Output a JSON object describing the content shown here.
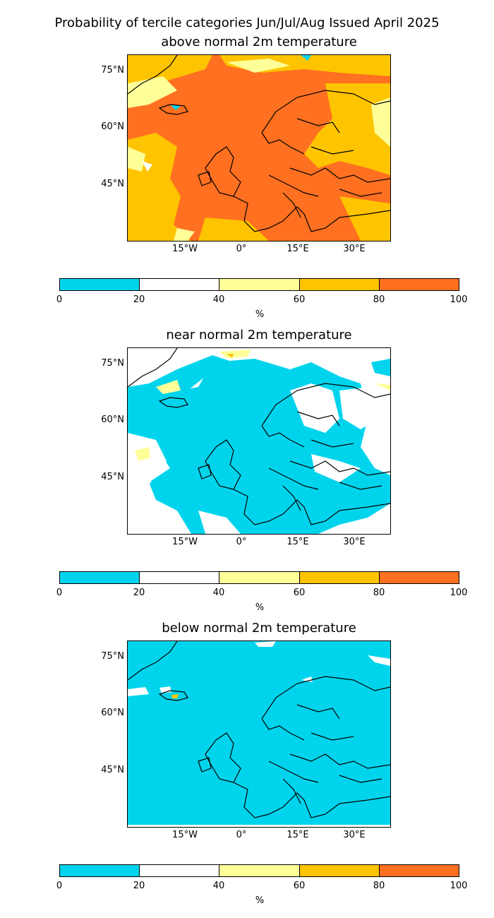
{
  "title": "Probability of tercile categories Jun/Jul/Aug Issued April 2025",
  "lat_ticks": [
    "75°N",
    "60°N",
    "45°N"
  ],
  "lon_ticks": [
    "15°W",
    "0°",
    "15°E",
    "30°E"
  ],
  "colorbar": {
    "ticks": [
      "0",
      "20",
      "40",
      "60",
      "80",
      "100"
    ],
    "unit": "%",
    "colors": [
      "#00d4ed",
      "#ffffff",
      "#ffff99",
      "#ffc400",
      "#ff7020"
    ]
  },
  "panels": [
    {
      "title": "above normal 2m temperature",
      "dominant_category": "60-80 / 80-100"
    },
    {
      "title": "near normal 2m temperature",
      "dominant_category": "0-20 / 20-40"
    },
    {
      "title": "below normal 2m temperature",
      "dominant_category": "0-20"
    }
  ]
}
